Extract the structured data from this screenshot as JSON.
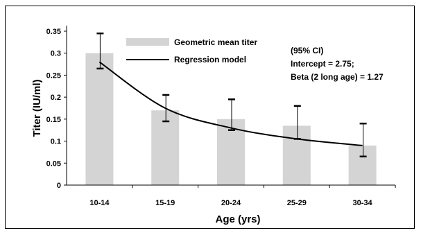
{
  "chart_data": {
    "type": "bar",
    "categories": [
      "10-14",
      "15-19",
      "20-24",
      "25-29",
      "30-34"
    ],
    "series": [
      {
        "name": "Geometric mean titer",
        "kind": "bar",
        "values": [
          0.3,
          0.17,
          0.15,
          0.135,
          0.09
        ],
        "ci_upper": [
          0.345,
          0.205,
          0.195,
          0.18,
          0.14
        ],
        "ci_lower": [
          0.265,
          0.145,
          0.125,
          0.105,
          0.065
        ]
      },
      {
        "name": "Regression model",
        "kind": "line",
        "values": [
          0.28,
          0.175,
          0.13,
          0.105,
          0.09
        ]
      }
    ],
    "xlabel": "Age (yrs)",
    "ylabel": "Titer (IU/ml)",
    "ylim": [
      0,
      0.35
    ],
    "yticks": [
      "0",
      "0.05",
      "0.1",
      "0.15",
      "0.2",
      "0.25",
      "0.3",
      "0.35"
    ],
    "grid": false,
    "legend_position": "top-center",
    "annotation": [
      "(95% CI)",
      "Intercept = 2.75;",
      "Beta (2 long age) = 1.27"
    ],
    "colors": {
      "bar": "#d4d4d4",
      "line": "#000000",
      "errorbar": "#000000"
    }
  }
}
